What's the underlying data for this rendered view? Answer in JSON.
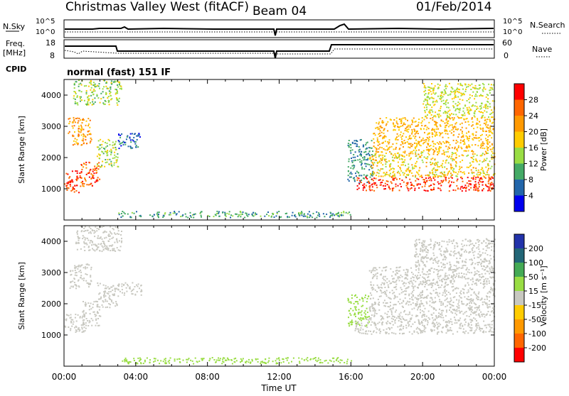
{
  "header": {
    "title": "Christmas Valley West (fitACF)",
    "beam": "Beam 04",
    "date": "01/Feb/2014"
  },
  "top_panels": {
    "nsky_label": "N.Sky",
    "nsearch_label": "N.Search",
    "noise_ticks": [
      "10^5",
      "10^0"
    ],
    "freq_label_1": "Freq.",
    "freq_label_2": "[MHz]",
    "freq_ticks": [
      "18",
      "8"
    ],
    "nave_label": "Nave",
    "nave_ticks": [
      "60",
      "0"
    ],
    "cpid_label": "CPID",
    "cpid_value": "normal (fast) 151 IF"
  },
  "colorbars": {
    "power": {
      "label": "Power [dB]",
      "ticks": [
        "28",
        "24",
        "20",
        "16",
        "12",
        "8",
        "4"
      ],
      "colors": [
        "#ff0000",
        "#ff6600",
        "#ff9900",
        "#ffcc00",
        "#99dd44",
        "#44aa66",
        "#2266aa",
        "#0000ee"
      ]
    },
    "velocity": {
      "label": "Velocity [m s⁻¹]",
      "ticks": [
        "200",
        "100",
        "50",
        "15",
        "-15",
        "-50",
        "-100",
        "-200"
      ],
      "colors": [
        "#2233aa",
        "#226677",
        "#44aa55",
        "#99dd44",
        "#c8c8c0",
        "#ffcc00",
        "#ff9900",
        "#ff6600",
        "#ff0000"
      ]
    }
  },
  "chart_data": [
    {
      "type": "heatmap",
      "panel": "power",
      "ylabel": "Slant Range [km]",
      "ylim": [
        0,
        4500
      ],
      "yticks": [
        1000,
        2000,
        3000,
        4000
      ],
      "xlim": [
        0,
        24
      ],
      "xtick_labels": [
        "00:00",
        "04:00",
        "08:00",
        "12:00",
        "16:00",
        "20:00",
        "00:00"
      ],
      "regions": [
        {
          "t": [
            0.0,
            1.0
          ],
          "r": [
            900,
            1600
          ],
          "level": 28
        },
        {
          "t": [
            0.9,
            2.0
          ],
          "r": [
            1100,
            1900
          ],
          "level": 26
        },
        {
          "t": [
            1.8,
            3.0
          ],
          "r": [
            1700,
            2600
          ],
          "level": 14
        },
        {
          "t": [
            3.0,
            4.3
          ],
          "r": [
            2300,
            2800
          ],
          "level": 6
        },
        {
          "t": [
            0.2,
            1.5
          ],
          "r": [
            2400,
            3300
          ],
          "level": 22
        },
        {
          "t": [
            0.5,
            3.2
          ],
          "r": [
            3700,
            4500
          ],
          "level": 14
        },
        {
          "t": [
            15.8,
            17.2
          ],
          "r": [
            1200,
            2600
          ],
          "level": 8
        },
        {
          "t": [
            16.3,
            24.0
          ],
          "r": [
            950,
            1400
          ],
          "level": 28
        },
        {
          "t": [
            17.0,
            24.0
          ],
          "r": [
            1400,
            2200
          ],
          "level": 18
        },
        {
          "t": [
            17.2,
            24.0
          ],
          "r": [
            2200,
            3300
          ],
          "level": 20
        },
        {
          "t": [
            20.0,
            24.0
          ],
          "r": [
            3300,
            4400
          ],
          "level": 16
        },
        {
          "t": [
            3.0,
            16.0
          ],
          "r": [
            100,
            300
          ],
          "level": 10
        }
      ]
    },
    {
      "type": "heatmap",
      "panel": "velocity",
      "ylabel": "Slant Range [km]",
      "ylim": [
        0,
        4500
      ],
      "yticks": [
        1000,
        2000,
        3000,
        4000
      ],
      "xlim": [
        0,
        24
      ],
      "xtick_labels": [
        "00:00",
        "04:00",
        "08:00",
        "12:00",
        "16:00",
        "20:00",
        "00:00"
      ],
      "xlabel": "Time UT",
      "regions": [
        {
          "t": [
            0.0,
            1.2
          ],
          "r": [
            1100,
            1700
          ],
          "level": 0
        },
        {
          "t": [
            1.0,
            2.0
          ],
          "r": [
            1300,
            2100
          ],
          "level": 0
        },
        {
          "t": [
            1.8,
            3.0
          ],
          "r": [
            1900,
            2700
          ],
          "level": 0
        },
        {
          "t": [
            3.0,
            4.3
          ],
          "r": [
            2300,
            2700
          ],
          "level": 0
        },
        {
          "t": [
            0.3,
            1.5
          ],
          "r": [
            2500,
            3300
          ],
          "level": 0
        },
        {
          "t": [
            0.6,
            3.2
          ],
          "r": [
            3700,
            4500
          ],
          "level": 0
        },
        {
          "t": [
            15.8,
            17.0
          ],
          "r": [
            1300,
            2300
          ],
          "level": 30
        },
        {
          "t": [
            16.2,
            24.0
          ],
          "r": [
            1050,
            1550
          ],
          "level": 0
        },
        {
          "t": [
            17.0,
            24.0
          ],
          "r": [
            1550,
            3200
          ],
          "level": 5
        },
        {
          "t": [
            19.5,
            24.0
          ],
          "r": [
            3200,
            4100
          ],
          "level": 5
        },
        {
          "t": [
            3.0,
            16.0
          ],
          "r": [
            100,
            300
          ],
          "level": 40
        }
      ]
    }
  ]
}
